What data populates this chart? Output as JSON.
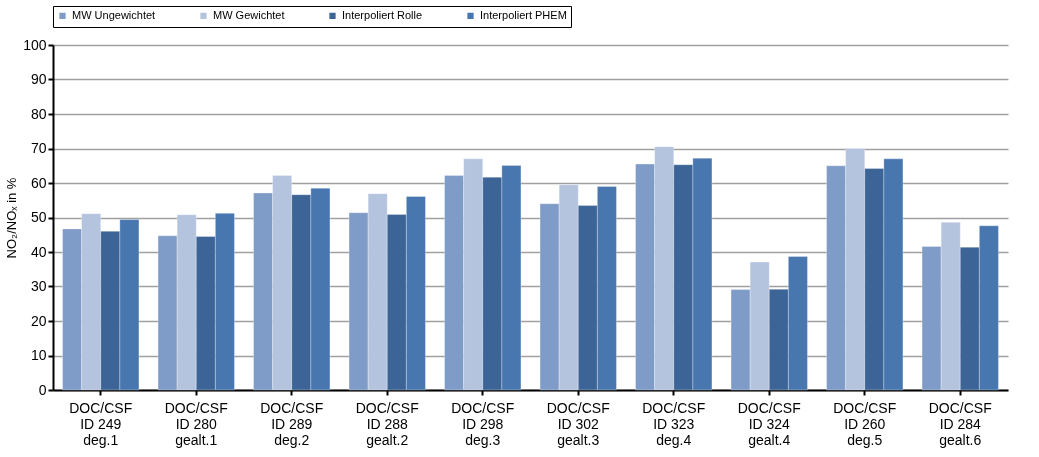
{
  "chart_data": {
    "type": "bar",
    "ylabel": "NO₂/NOₓ in %",
    "categories": [
      "DOC/CSF\nID 249\ndeg.1",
      "DOC/CSF\nID 280\ngealt.1",
      "DOC/CSF\nID 289\ndeg.2",
      "DOC/CSF\nID 288\ngealt.2",
      "DOC/CSF\nID 298\ndeg.3",
      "DOC/CSF\nID 302\ngealt.3",
      "DOC/CSF\nID 323\ndeg.4",
      "DOC/CSF\nID 324\ngealt.4",
      "DOC/CSF\nID 260\ndeg.5",
      "DOC/CSF\nID 284\ngealt.6"
    ],
    "series": [
      {
        "name": "MW Ungewichtet",
        "color": "#7f9cc8",
        "values": [
          46.7,
          44.7,
          57.1,
          51.4,
          62.2,
          54.0,
          65.5,
          29.1,
          65.0,
          41.6
        ]
      },
      {
        "name": "MW Gewichtet",
        "color": "#b4c3de",
        "values": [
          51.1,
          50.8,
          62.2,
          56.9,
          67.0,
          59.5,
          70.5,
          37.1,
          70.0,
          48.6
        ]
      },
      {
        "name": "Interpoliert Rolle",
        "color": "#3c6496",
        "values": [
          46.0,
          44.5,
          56.6,
          50.9,
          61.7,
          53.5,
          65.3,
          29.2,
          64.2,
          41.4
        ]
      },
      {
        "name": "Interpoliert PHEM",
        "color": "#4877af",
        "values": [
          49.4,
          51.2,
          58.5,
          56.1,
          65.1,
          59.0,
          67.2,
          38.7,
          67.0,
          47.6
        ]
      }
    ],
    "ylim": [
      0,
      100
    ],
    "yticks": [
      0,
      10,
      20,
      30,
      40,
      50,
      60,
      70,
      80,
      90,
      100
    ],
    "grid": "y",
    "legend": "top"
  }
}
